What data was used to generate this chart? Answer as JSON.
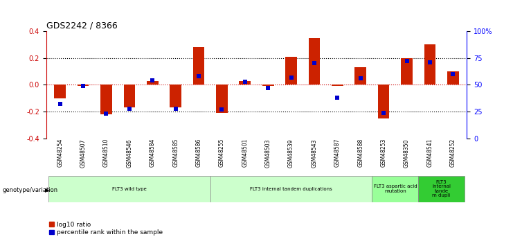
{
  "title": "GDS2242 / 8366",
  "samples": [
    "GSM48254",
    "GSM48507",
    "GSM48510",
    "GSM48546",
    "GSM48584",
    "GSM48585",
    "GSM48586",
    "GSM48255",
    "GSM48501",
    "GSM48503",
    "GSM48539",
    "GSM48543",
    "GSM48587",
    "GSM48588",
    "GSM48253",
    "GSM48350",
    "GSM48541",
    "GSM48252"
  ],
  "log10_ratio": [
    -0.1,
    -0.01,
    -0.22,
    -0.17,
    0.03,
    -0.17,
    0.28,
    -0.21,
    0.03,
    -0.01,
    0.21,
    0.35,
    -0.01,
    0.13,
    -0.25,
    0.2,
    0.3,
    0.1
  ],
  "percentile_rank": [
    32,
    49,
    23,
    28,
    54,
    28,
    58,
    27,
    53,
    47,
    57,
    70,
    38,
    56,
    24,
    72,
    71,
    60
  ],
  "groups": [
    {
      "label": "FLT3 wild type",
      "start": 0,
      "end": 7,
      "color": "#ccffcc"
    },
    {
      "label": "FLT3 internal tandem duplications",
      "start": 7,
      "end": 14,
      "color": "#ccffcc"
    },
    {
      "label": "FLT3 aspartic acid\nmutation",
      "start": 14,
      "end": 16,
      "color": "#99ff99"
    },
    {
      "label": "FLT3\ninternal\ntande\nm dupli",
      "start": 16,
      "end": 18,
      "color": "#33cc33"
    }
  ],
  "ylim_left": [
    -0.4,
    0.4
  ],
  "ylim_right": [
    0,
    100
  ],
  "bar_color": "#cc2200",
  "point_color": "#0000cc",
  "yticks_left": [
    -0.4,
    -0.2,
    0.0,
    0.2,
    0.4
  ],
  "yticks_right": [
    0,
    25,
    50,
    75,
    100
  ],
  "ytick_labels_right": [
    "0",
    "25",
    "50",
    "75",
    "100%"
  ],
  "bar_width": 0.5,
  "point_size": 5.0
}
